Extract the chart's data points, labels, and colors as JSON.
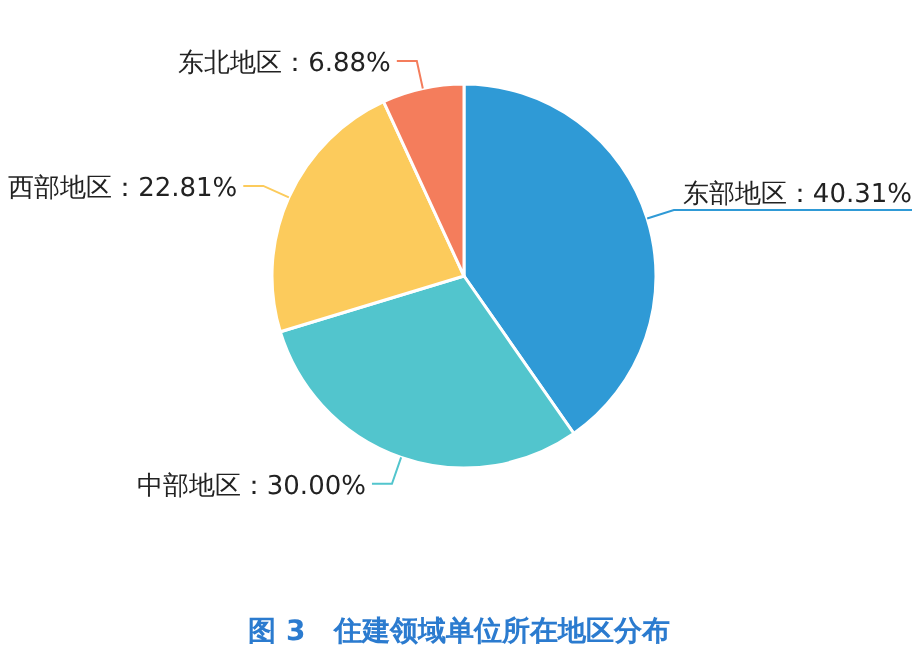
{
  "chart_data": {
    "type": "pie",
    "title": "图 3　住建领域单位所在地区分布",
    "categories": [
      "东部地区",
      "中部地区",
      "西部地区",
      "东北地区"
    ],
    "values": [
      40.31,
      30.0,
      22.81,
      6.88
    ],
    "value_labels": [
      "40.31%",
      "30.00%",
      "22.81%",
      "6.88%"
    ],
    "colors": [
      "#2f9ad6",
      "#52c5cd",
      "#fccb5c",
      "#f47d5c"
    ]
  }
}
